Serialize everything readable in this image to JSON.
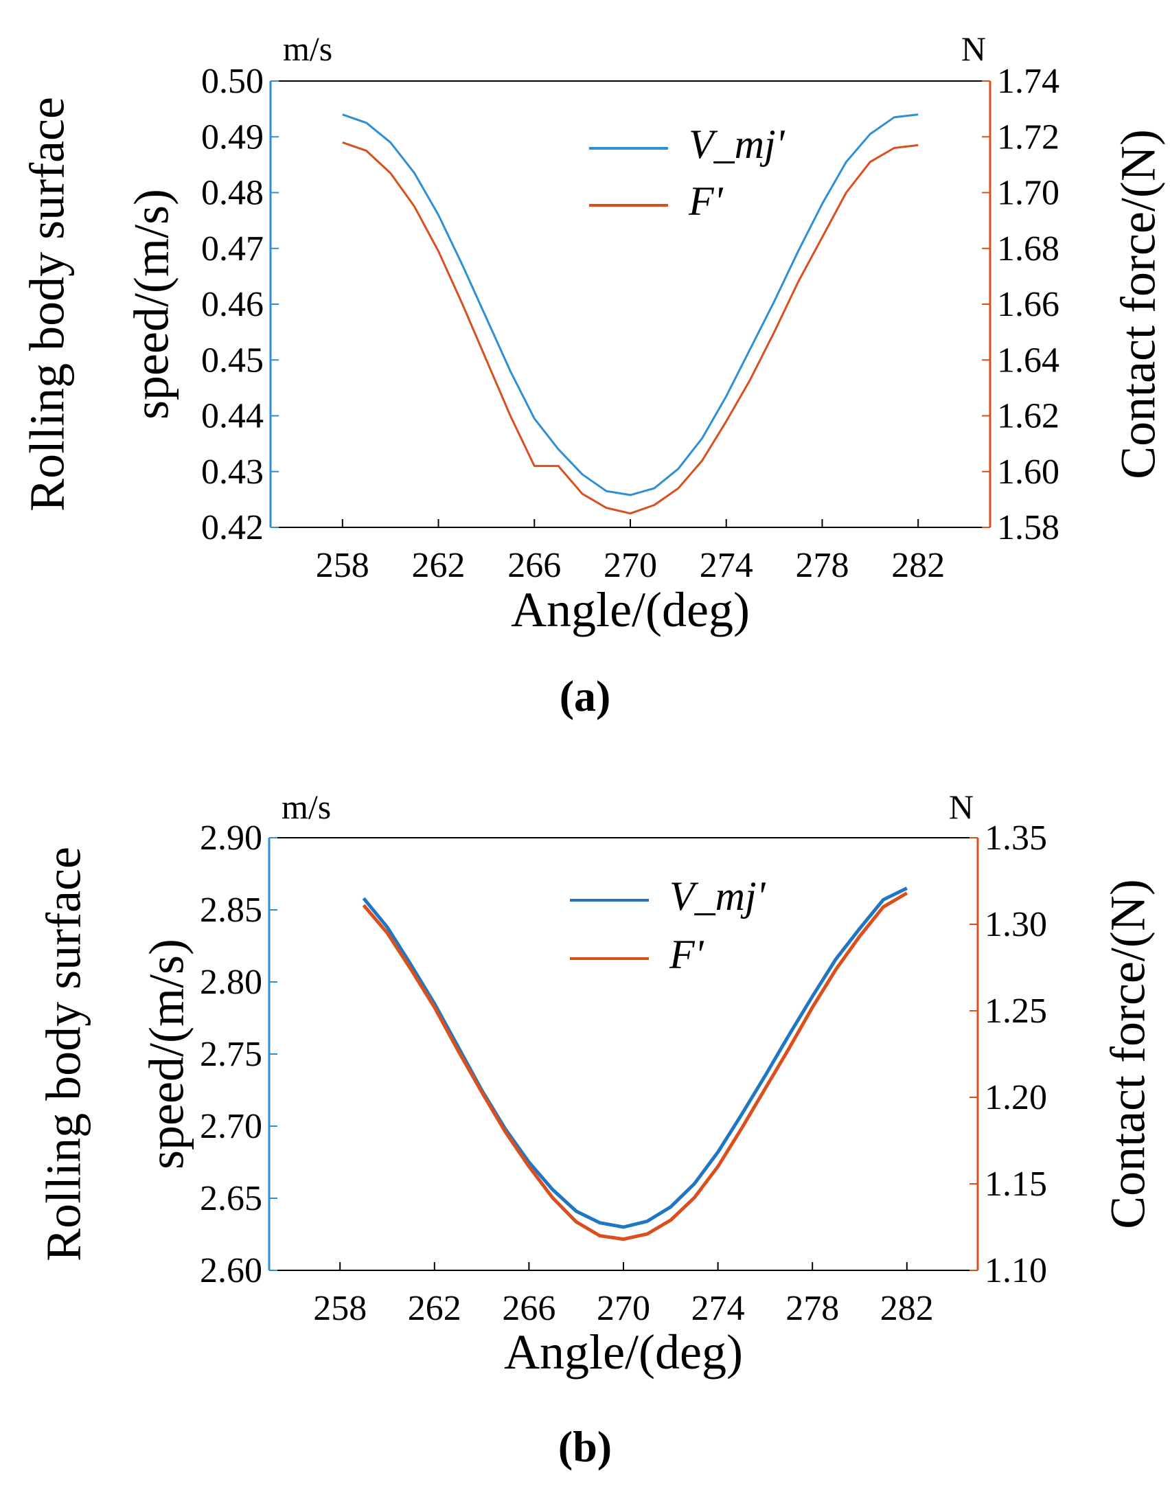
{
  "chart_data": [
    {
      "panel_label": "(a)",
      "type": "line",
      "xlabel": "Angle/(deg)",
      "ylabel_lines": [
        "Rolling body surface",
        "speed/(m/s)"
      ],
      "y2label": "Contact force/(N)",
      "y_unit": "m/s",
      "y2_unit": "N",
      "xlim": [
        255,
        285
      ],
      "ylim": [
        0.42,
        0.5
      ],
      "y2lim": [
        1.58,
        1.74
      ],
      "x_ticks": [
        "258",
        "262",
        "266",
        "270",
        "274",
        "278",
        "282"
      ],
      "y_ticks": [
        "0.42",
        "0.43",
        "0.44",
        "0.45",
        "0.46",
        "0.47",
        "0.48",
        "0.49",
        "0.50"
      ],
      "y2_ticks": [
        "1.58",
        "1.60",
        "1.62",
        "1.64",
        "1.66",
        "1.68",
        "1.70",
        "1.72",
        "1.74"
      ],
      "legend": "top-center",
      "series": [
        {
          "name": "V_mj'",
          "axis": "left",
          "color": "#2e8fd6",
          "x": [
            258,
            259,
            260,
            261,
            262,
            263,
            264,
            265,
            266,
            267,
            268,
            269,
            270,
            271,
            272,
            273,
            274,
            275,
            276,
            277,
            278,
            279,
            280,
            281,
            282
          ],
          "values": [
            0.494,
            0.4925,
            0.489,
            0.4835,
            0.476,
            0.467,
            0.4575,
            0.448,
            0.4395,
            0.434,
            0.4295,
            0.4265,
            0.4258,
            0.427,
            0.4305,
            0.436,
            0.4435,
            0.452,
            0.4605,
            0.4695,
            0.478,
            0.4855,
            0.4905,
            0.4935,
            0.494
          ]
        },
        {
          "name": "F'",
          "axis": "right",
          "color": "#d9501e",
          "x": [
            258,
            259,
            260,
            261,
            262,
            263,
            264,
            265,
            266,
            267,
            268,
            269,
            270,
            271,
            272,
            273,
            274,
            275,
            276,
            277,
            278,
            279,
            280,
            281,
            282
          ],
          "values": [
            1.718,
            1.715,
            1.707,
            1.695,
            1.679,
            1.66,
            1.64,
            1.62,
            1.602,
            1.602,
            1.592,
            1.587,
            1.585,
            1.588,
            1.594,
            1.604,
            1.618,
            1.633,
            1.65,
            1.668,
            1.684,
            1.7,
            1.711,
            1.716,
            1.717
          ]
        }
      ]
    },
    {
      "panel_label": "(b)",
      "type": "line",
      "xlabel": "Angle/(deg)",
      "ylabel_lines": [
        "Rolling body surface",
        "speed/(m/s)"
      ],
      "y2label": "Contact force/(N)",
      "y_unit": "m/s",
      "y2_unit": "N",
      "xlim": [
        255,
        285
      ],
      "ylim": [
        2.6,
        2.9
      ],
      "y2lim": [
        1.1,
        1.35
      ],
      "x_ticks": [
        "258",
        "262",
        "266",
        "270",
        "274",
        "278",
        "282"
      ],
      "y_ticks": [
        "2.60",
        "2.65",
        "2.70",
        "2.75",
        "2.80",
        "2.85",
        "2.90"
      ],
      "y2_ticks": [
        "1.10",
        "1.15",
        "1.20",
        "1.25",
        "1.30",
        "1.35"
      ],
      "legend": "top-center",
      "series": [
        {
          "name": "V_mj'",
          "axis": "left",
          "color": "#1f77c4",
          "x": [
            259,
            260,
            261,
            262,
            263,
            264,
            265,
            266,
            267,
            268,
            269,
            270,
            271,
            272,
            273,
            274,
            275,
            276,
            277,
            278,
            279,
            280,
            281,
            282
          ],
          "values": [
            2.858,
            2.838,
            2.812,
            2.785,
            2.755,
            2.725,
            2.698,
            2.675,
            2.656,
            2.641,
            2.633,
            2.63,
            2.634,
            2.644,
            2.66,
            2.682,
            2.708,
            2.735,
            2.763,
            2.79,
            2.816,
            2.837,
            2.857,
            2.865
          ]
        },
        {
          "name": "F'",
          "axis": "right",
          "color": "#d9501e",
          "x": [
            259,
            260,
            261,
            262,
            263,
            264,
            265,
            266,
            267,
            268,
            269,
            270,
            271,
            272,
            273,
            274,
            275,
            276,
            277,
            278,
            279,
            280,
            281,
            282
          ],
          "values": [
            1.311,
            1.295,
            1.274,
            1.252,
            1.227,
            1.203,
            1.18,
            1.16,
            1.142,
            1.128,
            1.12,
            1.118,
            1.121,
            1.129,
            1.142,
            1.16,
            1.182,
            1.205,
            1.228,
            1.252,
            1.274,
            1.293,
            1.31,
            1.318
          ]
        }
      ]
    }
  ]
}
